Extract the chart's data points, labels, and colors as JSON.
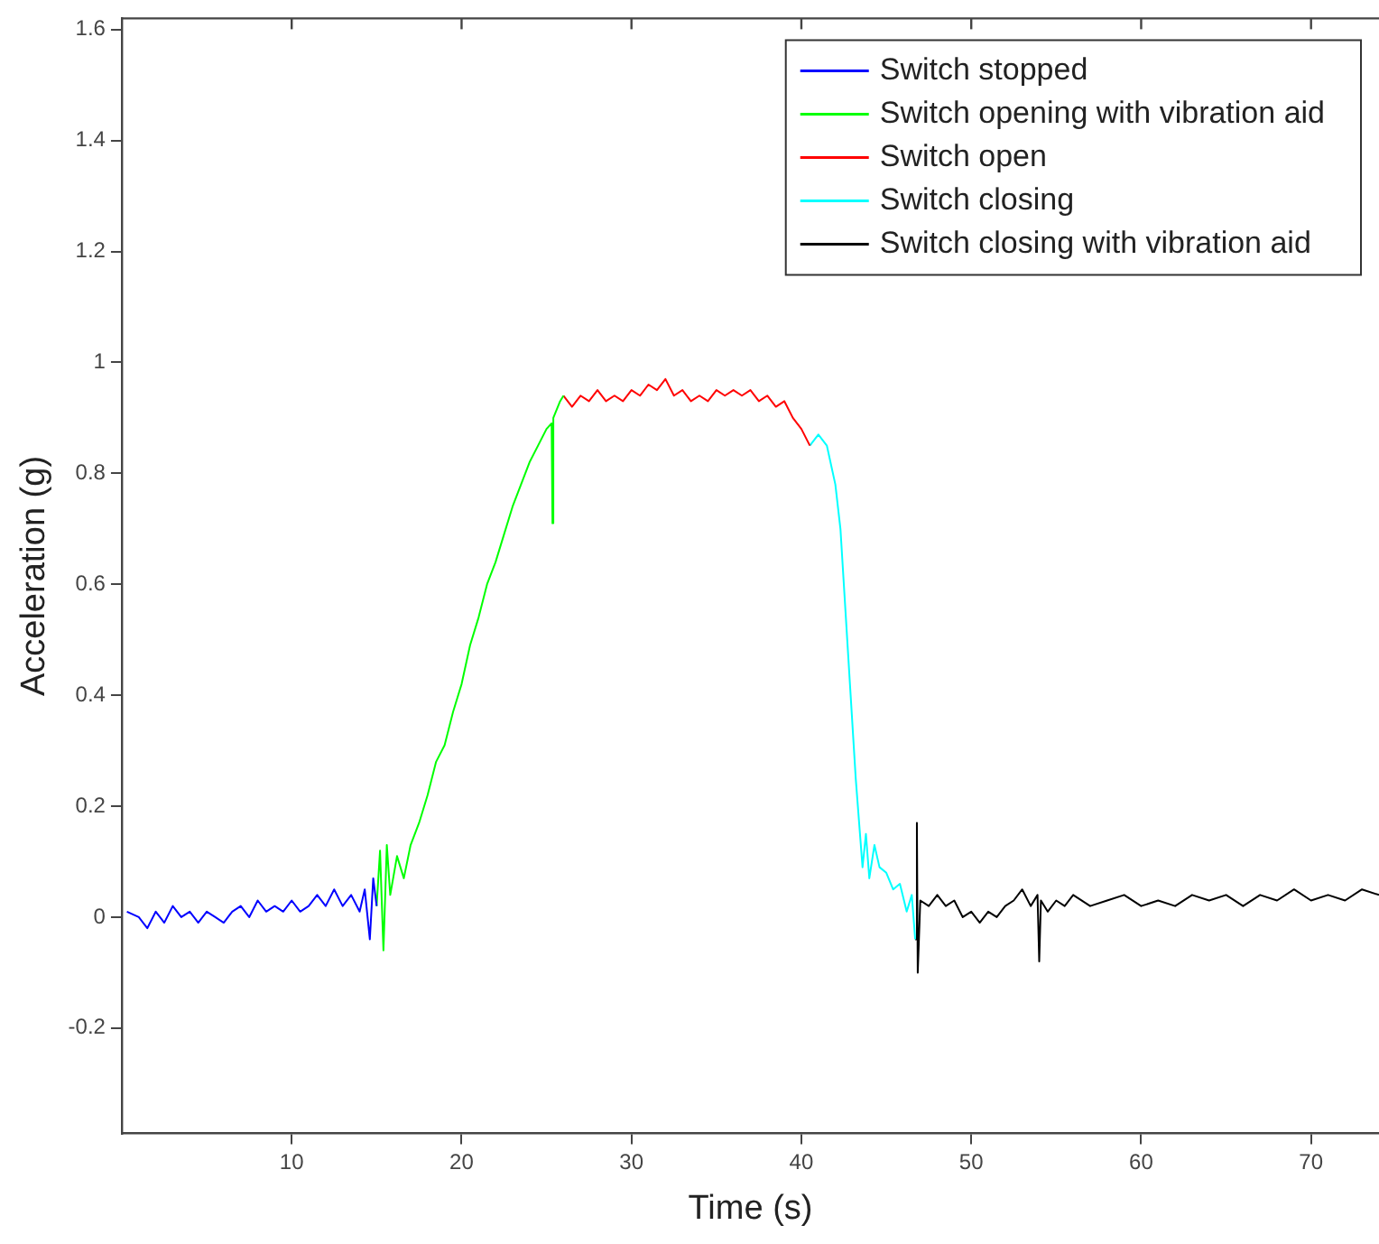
{
  "chart_data": {
    "type": "line",
    "xlabel": "Time (s)",
    "ylabel": "Acceleration (g)",
    "xlim": [
      0,
      74
    ],
    "ylim": [
      -0.39,
      1.62
    ],
    "xticks": [
      10,
      20,
      30,
      40,
      50,
      60,
      70
    ],
    "yticks": [
      -0.2,
      0,
      0.2,
      0.4,
      0.6,
      0.8,
      1,
      1.2,
      1.4,
      1.6
    ],
    "grid": false,
    "legend": "top right",
    "marker": "none",
    "line_style": "solid",
    "series": [
      {
        "name": "Switch stopped",
        "color": "#0000ff",
        "x": [
          0.3,
          1,
          1.5,
          2,
          2.5,
          3,
          3.5,
          4,
          4.5,
          5,
          5.5,
          6,
          6.5,
          7,
          7.5,
          8,
          8.5,
          9,
          9.5,
          10,
          10.5,
          11,
          11.5,
          12,
          12.5,
          13,
          13.5,
          14,
          14.3,
          14.6,
          14.8,
          15
        ],
        "values": [
          0.01,
          0,
          -0.02,
          0.01,
          -0.01,
          0.02,
          0,
          0.01,
          -0.01,
          0.01,
          0,
          -0.01,
          0.01,
          0.02,
          0,
          0.03,
          0.01,
          0.02,
          0.01,
          0.03,
          0.01,
          0.02,
          0.04,
          0.02,
          0.05,
          0.02,
          0.04,
          0.01,
          0.05,
          -0.04,
          0.07,
          0.02
        ]
      },
      {
        "name": "Switch opening with vibration aid",
        "color": "#00ff00",
        "x": [
          15,
          15.2,
          15.4,
          15.6,
          15.8,
          16.2,
          16.6,
          17,
          17.5,
          18,
          18.5,
          19,
          19.5,
          20,
          20.5,
          21,
          21.5,
          22,
          22.5,
          23,
          23.5,
          24,
          24.5,
          25,
          25.3,
          25.35,
          25.4,
          25.8,
          26
        ],
        "values": [
          0.02,
          0.12,
          -0.06,
          0.13,
          0.04,
          0.11,
          0.07,
          0.13,
          0.17,
          0.22,
          0.28,
          0.31,
          0.37,
          0.42,
          0.49,
          0.54,
          0.6,
          0.64,
          0.69,
          0.74,
          0.78,
          0.82,
          0.85,
          0.88,
          0.89,
          0.71,
          0.9,
          0.93,
          0.94
        ]
      },
      {
        "name": "Switch open",
        "color": "#ff0000",
        "x": [
          26,
          26.5,
          27,
          27.5,
          28,
          28.5,
          29,
          29.5,
          30,
          30.5,
          31,
          31.5,
          32,
          32.5,
          33,
          33.5,
          34,
          34.5,
          35,
          35.5,
          36,
          36.5,
          37,
          37.5,
          38,
          38.5,
          39,
          39.5,
          40,
          40.5
        ],
        "values": [
          0.94,
          0.92,
          0.94,
          0.93,
          0.95,
          0.93,
          0.94,
          0.93,
          0.95,
          0.94,
          0.96,
          0.95,
          0.97,
          0.94,
          0.95,
          0.93,
          0.94,
          0.93,
          0.95,
          0.94,
          0.95,
          0.94,
          0.95,
          0.93,
          0.94,
          0.92,
          0.93,
          0.9,
          0.88,
          0.85
        ]
      },
      {
        "name": "Switch closing",
        "color": "#00ffff",
        "x": [
          40.5,
          41,
          41.5,
          42,
          42.3,
          42.6,
          42.9,
          43.2,
          43.4,
          43.6,
          43.8,
          44,
          44.3,
          44.6,
          45,
          45.4,
          45.8,
          46.2,
          46.5,
          46.7
        ],
        "values": [
          0.85,
          0.87,
          0.85,
          0.78,
          0.7,
          0.55,
          0.4,
          0.25,
          0.17,
          0.09,
          0.15,
          0.07,
          0.13,
          0.09,
          0.08,
          0.05,
          0.06,
          0.01,
          0.04,
          -0.04
        ]
      },
      {
        "name": "Switch closing with vibration aid",
        "color": "#000000",
        "x": [
          46.7,
          46.8,
          46.85,
          47,
          47.5,
          48,
          48.5,
          49,
          49.5,
          50,
          50.5,
          51,
          51.5,
          52,
          52.5,
          53,
          53.5,
          53.9,
          54,
          54.1,
          54.5,
          55,
          55.5,
          56,
          57,
          58,
          59,
          60,
          61,
          62,
          63,
          64,
          65,
          66,
          67,
          68,
          69,
          70,
          71,
          72,
          73,
          74
        ],
        "values": [
          -0.04,
          0.17,
          -0.1,
          0.03,
          0.02,
          0.04,
          0.02,
          0.03,
          0,
          0.01,
          -0.01,
          0.01,
          0,
          0.02,
          0.03,
          0.05,
          0.02,
          0.04,
          -0.08,
          0.03,
          0.01,
          0.03,
          0.02,
          0.04,
          0.02,
          0.03,
          0.04,
          0.02,
          0.03,
          0.02,
          0.04,
          0.03,
          0.04,
          0.02,
          0.04,
          0.03,
          0.05,
          0.03,
          0.04,
          0.03,
          0.05,
          0.04
        ]
      }
    ]
  }
}
